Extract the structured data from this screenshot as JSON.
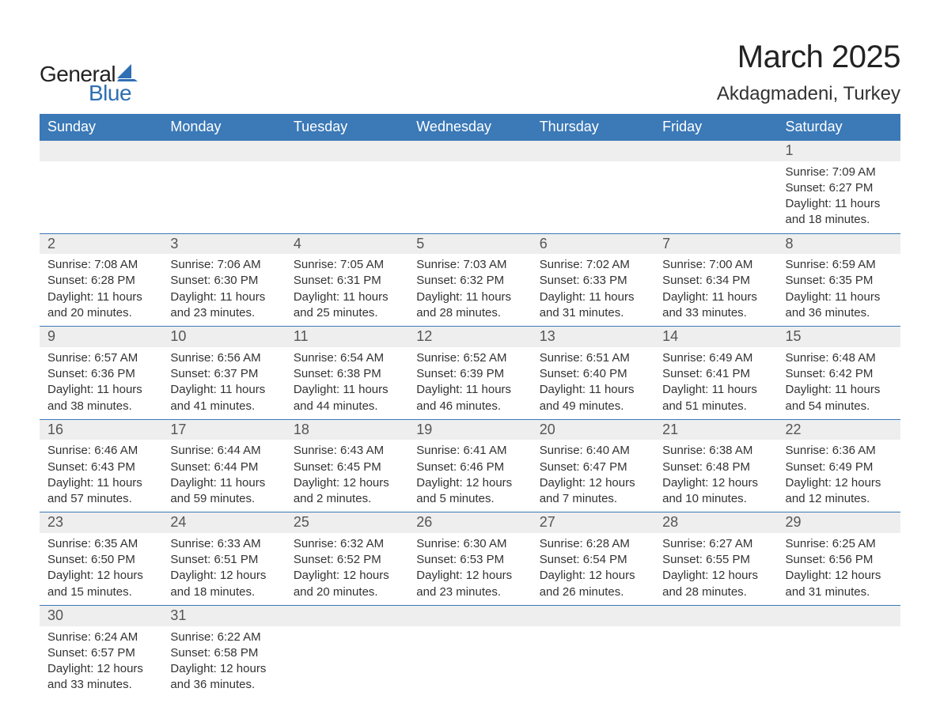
{
  "logo": {
    "text_general": "General",
    "text_blue": "Blue",
    "sail_color": "#2f6fb3"
  },
  "header": {
    "month_title": "March 2025",
    "location": "Akdagmadeni, Turkey"
  },
  "calendar": {
    "day_names": [
      "Sunday",
      "Monday",
      "Tuesday",
      "Wednesday",
      "Thursday",
      "Friday",
      "Saturday"
    ],
    "header_bg": "#3b79b7",
    "header_fg": "#ffffff",
    "daynum_bg": "#eeeeee",
    "row_divider": "#3b79b7",
    "text_color": "#333333",
    "weeks": [
      [
        null,
        null,
        null,
        null,
        null,
        null,
        {
          "n": "1",
          "sunrise": "7:09 AM",
          "sunset": "6:27 PM",
          "daylight": "11 hours and 18 minutes."
        }
      ],
      [
        {
          "n": "2",
          "sunrise": "7:08 AM",
          "sunset": "6:28 PM",
          "daylight": "11 hours and 20 minutes."
        },
        {
          "n": "3",
          "sunrise": "7:06 AM",
          "sunset": "6:30 PM",
          "daylight": "11 hours and 23 minutes."
        },
        {
          "n": "4",
          "sunrise": "7:05 AM",
          "sunset": "6:31 PM",
          "daylight": "11 hours and 25 minutes."
        },
        {
          "n": "5",
          "sunrise": "7:03 AM",
          "sunset": "6:32 PM",
          "daylight": "11 hours and 28 minutes."
        },
        {
          "n": "6",
          "sunrise": "7:02 AM",
          "sunset": "6:33 PM",
          "daylight": "11 hours and 31 minutes."
        },
        {
          "n": "7",
          "sunrise": "7:00 AM",
          "sunset": "6:34 PM",
          "daylight": "11 hours and 33 minutes."
        },
        {
          "n": "8",
          "sunrise": "6:59 AM",
          "sunset": "6:35 PM",
          "daylight": "11 hours and 36 minutes."
        }
      ],
      [
        {
          "n": "9",
          "sunrise": "6:57 AM",
          "sunset": "6:36 PM",
          "daylight": "11 hours and 38 minutes."
        },
        {
          "n": "10",
          "sunrise": "6:56 AM",
          "sunset": "6:37 PM",
          "daylight": "11 hours and 41 minutes."
        },
        {
          "n": "11",
          "sunrise": "6:54 AM",
          "sunset": "6:38 PM",
          "daylight": "11 hours and 44 minutes."
        },
        {
          "n": "12",
          "sunrise": "6:52 AM",
          "sunset": "6:39 PM",
          "daylight": "11 hours and 46 minutes."
        },
        {
          "n": "13",
          "sunrise": "6:51 AM",
          "sunset": "6:40 PM",
          "daylight": "11 hours and 49 minutes."
        },
        {
          "n": "14",
          "sunrise": "6:49 AM",
          "sunset": "6:41 PM",
          "daylight": "11 hours and 51 minutes."
        },
        {
          "n": "15",
          "sunrise": "6:48 AM",
          "sunset": "6:42 PM",
          "daylight": "11 hours and 54 minutes."
        }
      ],
      [
        {
          "n": "16",
          "sunrise": "6:46 AM",
          "sunset": "6:43 PM",
          "daylight": "11 hours and 57 minutes."
        },
        {
          "n": "17",
          "sunrise": "6:44 AM",
          "sunset": "6:44 PM",
          "daylight": "11 hours and 59 minutes."
        },
        {
          "n": "18",
          "sunrise": "6:43 AM",
          "sunset": "6:45 PM",
          "daylight": "12 hours and 2 minutes."
        },
        {
          "n": "19",
          "sunrise": "6:41 AM",
          "sunset": "6:46 PM",
          "daylight": "12 hours and 5 minutes."
        },
        {
          "n": "20",
          "sunrise": "6:40 AM",
          "sunset": "6:47 PM",
          "daylight": "12 hours and 7 minutes."
        },
        {
          "n": "21",
          "sunrise": "6:38 AM",
          "sunset": "6:48 PM",
          "daylight": "12 hours and 10 minutes."
        },
        {
          "n": "22",
          "sunrise": "6:36 AM",
          "sunset": "6:49 PM",
          "daylight": "12 hours and 12 minutes."
        }
      ],
      [
        {
          "n": "23",
          "sunrise": "6:35 AM",
          "sunset": "6:50 PM",
          "daylight": "12 hours and 15 minutes."
        },
        {
          "n": "24",
          "sunrise": "6:33 AM",
          "sunset": "6:51 PM",
          "daylight": "12 hours and 18 minutes."
        },
        {
          "n": "25",
          "sunrise": "6:32 AM",
          "sunset": "6:52 PM",
          "daylight": "12 hours and 20 minutes."
        },
        {
          "n": "26",
          "sunrise": "6:30 AM",
          "sunset": "6:53 PM",
          "daylight": "12 hours and 23 minutes."
        },
        {
          "n": "27",
          "sunrise": "6:28 AM",
          "sunset": "6:54 PM",
          "daylight": "12 hours and 26 minutes."
        },
        {
          "n": "28",
          "sunrise": "6:27 AM",
          "sunset": "6:55 PM",
          "daylight": "12 hours and 28 minutes."
        },
        {
          "n": "29",
          "sunrise": "6:25 AM",
          "sunset": "6:56 PM",
          "daylight": "12 hours and 31 minutes."
        }
      ],
      [
        {
          "n": "30",
          "sunrise": "6:24 AM",
          "sunset": "6:57 PM",
          "daylight": "12 hours and 33 minutes."
        },
        {
          "n": "31",
          "sunrise": "6:22 AM",
          "sunset": "6:58 PM",
          "daylight": "12 hours and 36 minutes."
        },
        null,
        null,
        null,
        null,
        null
      ]
    ],
    "labels": {
      "sunrise": "Sunrise:",
      "sunset": "Sunset:",
      "daylight": "Daylight:"
    }
  }
}
